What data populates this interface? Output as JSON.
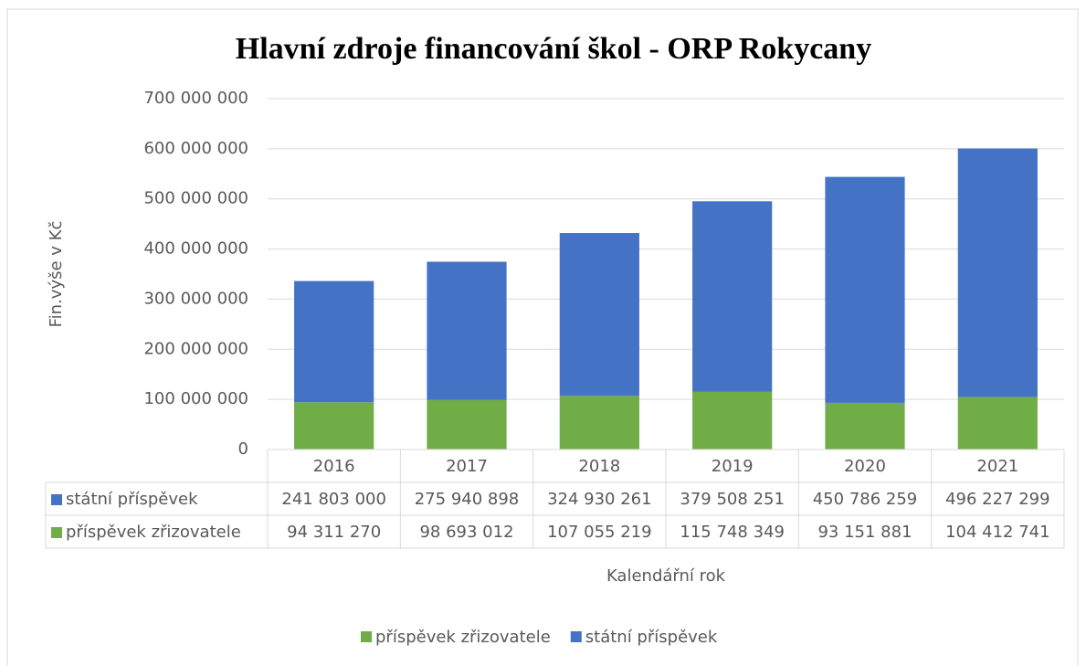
{
  "chart_data": {
    "type": "stacked_bar",
    "title": "Hlavní zdroje financování škol - ORP Rokycany",
    "x_label": "Kalendářní rok",
    "y_label": "Fin.výše v Kč",
    "categories": [
      "2016",
      "2017",
      "2018",
      "2019",
      "2020",
      "2021"
    ],
    "series": [
      {
        "name": "příspěvek zřizovatele",
        "color": "#70ad47",
        "values": [
          94311270,
          98693012,
          107055219,
          115748349,
          93151881,
          104412741
        ],
        "value_labels": [
          "94 311 270",
          "98 693 012",
          "107 055 219",
          "115 748 349",
          "93 151 881",
          "104 412 741"
        ]
      },
      {
        "name": "státní příspěvek",
        "color": "#4472c4",
        "values": [
          241803000,
          275940898,
          324930261,
          379508251,
          450786259,
          496227299
        ],
        "value_labels": [
          "241 803 000",
          "275 940 898",
          "324 930 261",
          "379 508 251",
          "450 786 259",
          "496 227 299"
        ]
      }
    ],
    "ylim": [
      0,
      700000000
    ],
    "yticks": [
      0,
      {
        "value": 100000000,
        "label": "100 000 000"
      },
      {
        "value": 200000000,
        "label": "200 000 000"
      },
      {
        "value": 300000000,
        "label": "300 000 000"
      },
      {
        "value": 400000000,
        "label": "400 000 000"
      },
      {
        "value": 500000000,
        "label": "500 000 000"
      },
      {
        "value": 600000000,
        "label": "600 000 000"
      },
      {
        "value": 700000000,
        "label": "700 000 000"
      }
    ],
    "grid": true,
    "legend": "bottom"
  }
}
